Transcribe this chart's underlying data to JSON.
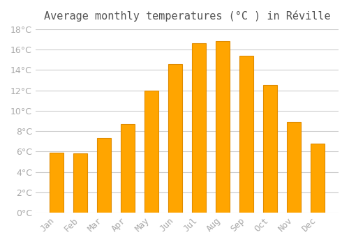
{
  "title": "Average monthly temperatures (°C ) in Réville",
  "months": [
    "Jan",
    "Feb",
    "Mar",
    "Apr",
    "May",
    "Jun",
    "Jul",
    "Aug",
    "Sep",
    "Oct",
    "Nov",
    "Dec"
  ],
  "values": [
    5.9,
    5.8,
    7.3,
    8.7,
    12.0,
    14.6,
    16.6,
    16.8,
    15.4,
    12.5,
    8.9,
    6.8
  ],
  "bar_color": "#FFA500",
  "bar_edge_color": "#E08C00",
  "background_color": "#ffffff",
  "grid_color": "#cccccc",
  "ylim": [
    0,
    18
  ],
  "yticks": [
    0,
    2,
    4,
    6,
    8,
    10,
    12,
    14,
    16,
    18
  ],
  "tick_label_color": "#aaaaaa",
  "title_color": "#555555",
  "title_fontsize": 11,
  "tick_fontsize": 9
}
